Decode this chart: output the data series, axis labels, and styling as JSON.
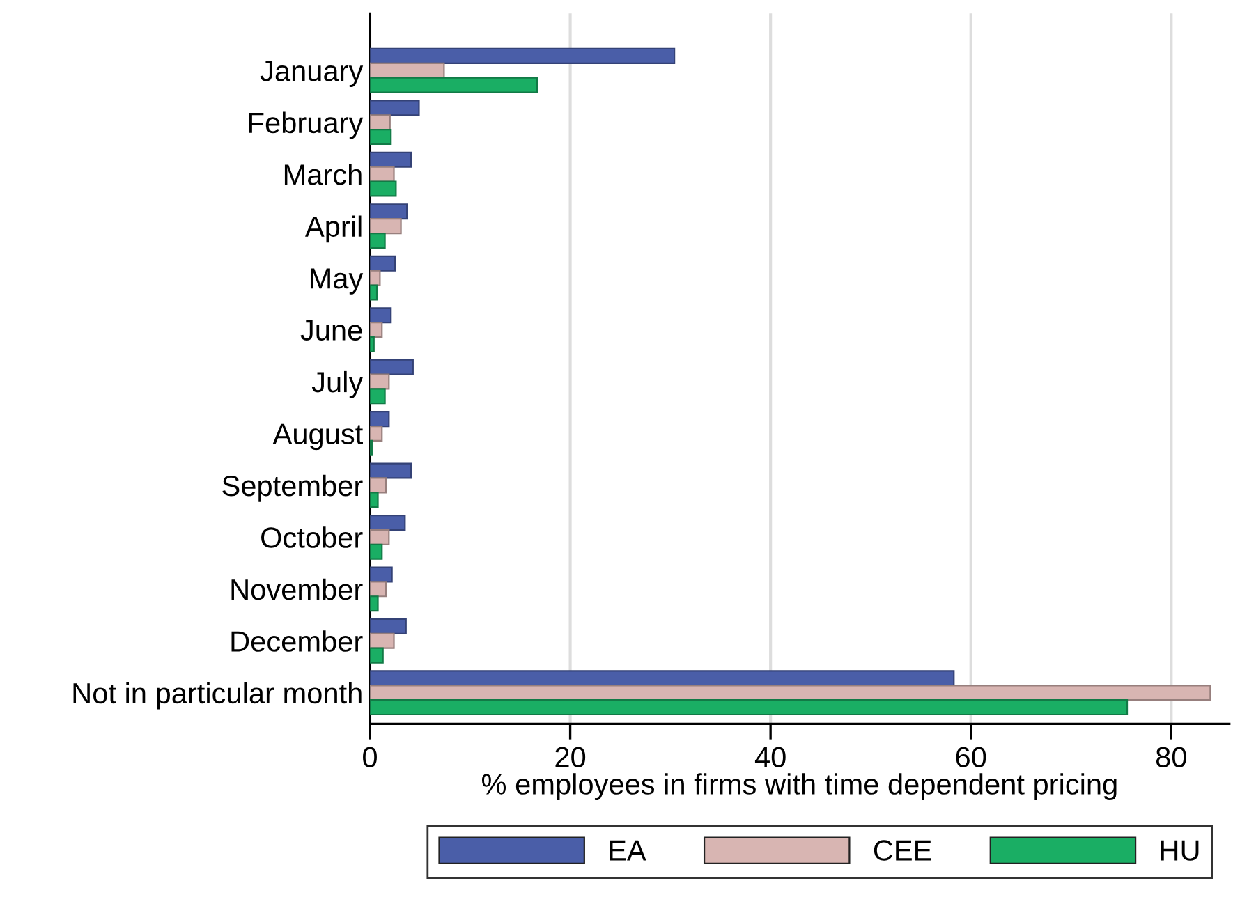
{
  "chart_data": {
    "type": "bar",
    "orientation": "horizontal",
    "xlabel": "% employees in firms with time dependent pricing",
    "categories": [
      "January",
      "February",
      "March",
      "April",
      "May",
      "June",
      "July",
      "August",
      "September",
      "October",
      "November",
      "December",
      "Not in particular month"
    ],
    "series": [
      {
        "name": "EA",
        "color": "#4a5ea8",
        "values": [
          30.4,
          4.9,
          4.1,
          3.7,
          2.5,
          2.1,
          4.3,
          1.9,
          4.1,
          3.5,
          2.2,
          3.6,
          58.3
        ]
      },
      {
        "name": "CEE",
        "color": "#d8b5b2",
        "values": [
          7.4,
          2.0,
          2.4,
          3.1,
          1.0,
          1.2,
          1.9,
          1.2,
          1.6,
          1.9,
          1.6,
          2.4,
          83.9
        ]
      },
      {
        "name": "HU",
        "color": "#1aae64",
        "values": [
          16.7,
          2.1,
          2.6,
          1.5,
          0.7,
          0.4,
          1.5,
          0.2,
          0.8,
          1.2,
          0.8,
          1.3,
          75.6
        ]
      }
    ],
    "xlim": [
      0,
      85.8
    ],
    "xticks": [
      0,
      20,
      40,
      60,
      80
    ],
    "grid": "x",
    "legend": "bottom"
  }
}
